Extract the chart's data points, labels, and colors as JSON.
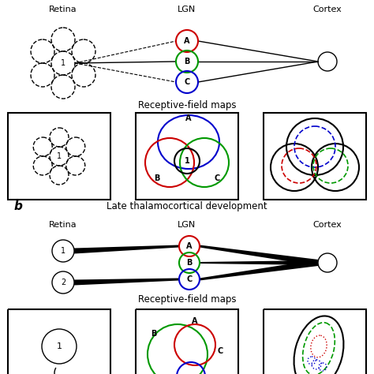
{
  "colors": {
    "red": "#cc0000",
    "green": "#009900",
    "blue": "#0000cc",
    "black": "#000000"
  },
  "bg": "#ffffff",
  "panel_a_labels": {
    "retina": "Retina",
    "lgn": "LGN",
    "cortex": "Cortex"
  },
  "panel_b_title": "Late thalamocortical development",
  "panel_b_labels": {
    "retina": "Retina",
    "lgn": "LGN",
    "cortex": "Cortex"
  },
  "rfmaps_label": "Receptive-field maps"
}
